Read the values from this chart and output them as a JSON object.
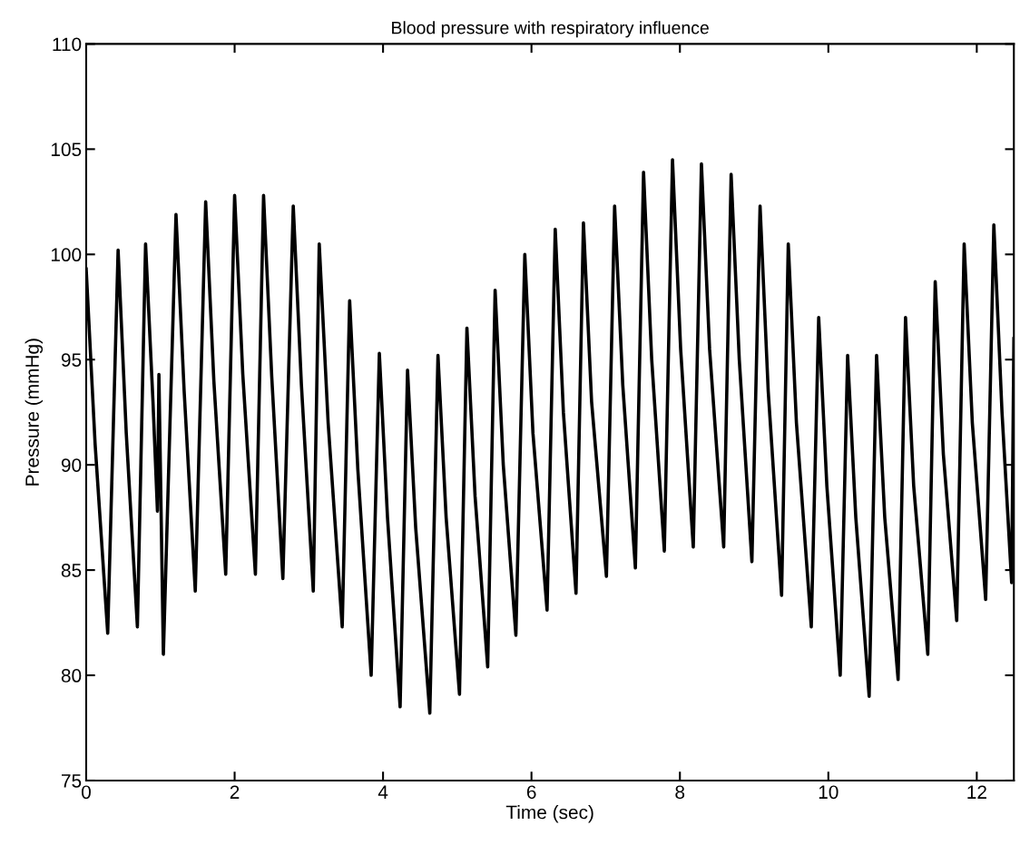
{
  "chart_data": {
    "type": "line",
    "title": "Blood pressure with respiratory influence",
    "xlabel": "Time (sec)",
    "ylabel": "Pressure (mmHg)",
    "xlim": [
      0,
      12.5
    ],
    "ylim": [
      75,
      110
    ],
    "xticks": [
      0,
      2,
      4,
      6,
      8,
      10,
      12
    ],
    "yticks": [
      75,
      80,
      85,
      90,
      95,
      100,
      105,
      110
    ],
    "series": [
      {
        "color": "#000000",
        "x": [
          0,
          0.12,
          0.29,
          0.43,
          0.54,
          0.69,
          0.8,
          0.9,
          0.96,
          0.98,
          1.04,
          1.21,
          1.32,
          1.47,
          1.61,
          1.72,
          1.88,
          2.0,
          2.11,
          2.28,
          2.39,
          2.5,
          2.65,
          2.79,
          2.9,
          3.06,
          3.14,
          3.26,
          3.45,
          3.55,
          3.66,
          3.84,
          3.95,
          4.06,
          4.23,
          4.33,
          4.44,
          4.63,
          4.74,
          4.85,
          5.03,
          5.13,
          5.24,
          5.41,
          5.51,
          5.62,
          5.79,
          5.91,
          6.02,
          6.21,
          6.32,
          6.43,
          6.6,
          6.7,
          6.81,
          7.01,
          7.12,
          7.23,
          7.4,
          7.51,
          7.62,
          7.79,
          7.9,
          8.01,
          8.18,
          8.29,
          8.4,
          8.59,
          8.69,
          8.8,
          8.97,
          9.08,
          9.19,
          9.37,
          9.46,
          9.57,
          9.77,
          9.87,
          9.98,
          10.16,
          10.26,
          10.37,
          10.55,
          10.65,
          10.76,
          10.94,
          11.04,
          11.15,
          11.34,
          11.44,
          11.55,
          11.73,
          11.83,
          11.94,
          12.12,
          12.23,
          12.34,
          12.47,
          12.5
        ],
        "values": [
          99.3,
          91.0,
          82.0,
          100.2,
          91.5,
          82.3,
          100.5,
          93.0,
          87.8,
          94.3,
          81.0,
          101.9,
          93.5,
          84.0,
          102.5,
          94.0,
          84.8,
          102.8,
          94.3,
          84.8,
          102.8,
          94.2,
          84.6,
          102.3,
          93.8,
          84.0,
          100.5,
          92.0,
          82.3,
          97.8,
          89.8,
          80.0,
          95.3,
          87.5,
          78.5,
          94.5,
          87.0,
          78.2,
          95.2,
          87.5,
          79.1,
          96.5,
          88.5,
          80.4,
          98.3,
          90.0,
          81.9,
          100.0,
          91.5,
          83.1,
          101.2,
          92.5,
          83.9,
          101.5,
          93.0,
          84.7,
          102.3,
          93.8,
          85.1,
          103.9,
          95.0,
          85.9,
          104.5,
          95.5,
          86.1,
          104.3,
          95.5,
          86.1,
          103.8,
          95.0,
          85.4,
          102.3,
          93.5,
          83.8,
          100.5,
          92.0,
          82.3,
          97.0,
          89.0,
          80.0,
          95.2,
          87.5,
          79.0,
          95.2,
          87.5,
          79.8,
          97.0,
          89.0,
          81.0,
          98.7,
          90.5,
          82.6,
          100.5,
          92.0,
          83.6,
          101.4,
          92.5,
          84.4,
          96.0
        ]
      }
    ]
  }
}
